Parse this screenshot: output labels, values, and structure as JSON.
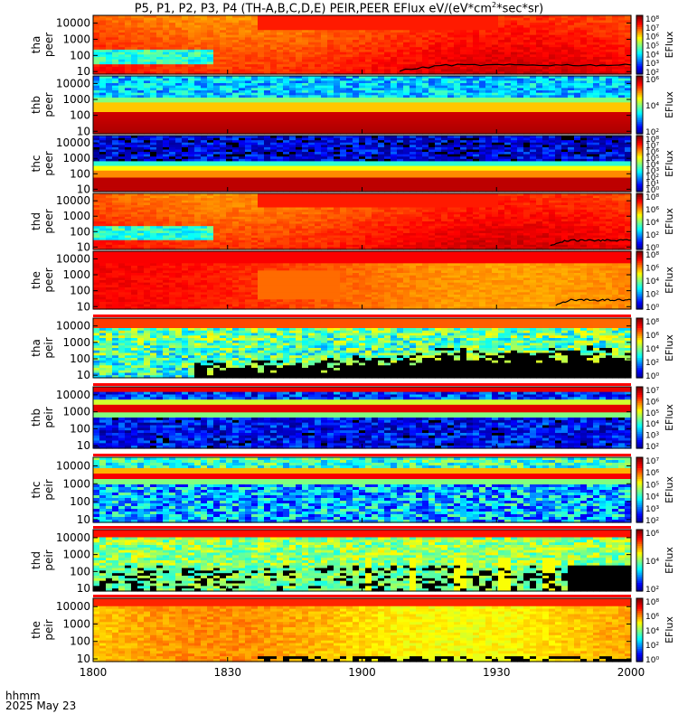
{
  "title_main": "P5, P1, P2, P3, P4 (TH-A,B,C,D,E) PEIR,PEER EFlux eV/(eV*cm",
  "title_sup": "2",
  "title_tail": "*sec*sr)",
  "footer": {
    "label1": "hhmm",
    "label2": "2025 May 23"
  },
  "colors": {
    "background": "#ffffff",
    "trace": "#000000"
  },
  "chart_data": [
    {
      "type": "heatmap",
      "ylabel": "tha peer",
      "zlabel": "EFlux",
      "xlabel": "",
      "x_ticks": [
        "1800",
        "1830",
        "1900",
        "1930",
        "2000"
      ],
      "y_ticks": [
        "10",
        "100",
        "1000",
        "10000"
      ],
      "y_scale": "log",
      "ylim": [
        7,
        30000
      ],
      "zticks": [
        "10²",
        "10³",
        "10⁴",
        "10⁵",
        "10⁶",
        "10⁷",
        "10⁸"
      ],
      "profile": "orange-saturated",
      "has_trace": true
    },
    {
      "type": "heatmap",
      "ylabel": "thb peer",
      "zlabel": "EFlux",
      "xlabel": "",
      "x_ticks": [
        "1800",
        "1830",
        "1900",
        "1930",
        "2000"
      ],
      "y_ticks": [
        "10",
        "100",
        "1000",
        "10000"
      ],
      "y_scale": "log",
      "ylim": [
        7,
        30000
      ],
      "zticks": [
        "10²",
        "10⁴",
        "10⁶"
      ],
      "profile": "banded-cyan",
      "has_trace": false
    },
    {
      "type": "heatmap",
      "ylabel": "thc peer",
      "zlabel": "EFlux",
      "xlabel": "",
      "x_ticks": [
        "1800",
        "1830",
        "1900",
        "1930",
        "2000"
      ],
      "y_ticks": [
        "10",
        "100",
        "1000",
        "10000"
      ],
      "y_scale": "log",
      "ylim": [
        7,
        30000
      ],
      "zticks": [
        "10⁰",
        "10¹",
        "10²",
        "10³",
        "10⁴",
        "10⁵",
        "10⁶",
        "10⁷",
        "10⁸"
      ],
      "profile": "banded-blue",
      "has_trace": false
    },
    {
      "type": "heatmap",
      "ylabel": "thd peer",
      "zlabel": "EFlux",
      "xlabel": "",
      "x_ticks": [
        "1800",
        "1830",
        "1900",
        "1930",
        "2000"
      ],
      "y_ticks": [
        "10",
        "100",
        "1000",
        "10000"
      ],
      "y_scale": "log",
      "ylim": [
        7,
        30000
      ],
      "zticks": [
        "10⁰",
        "10²",
        "10⁴",
        "10⁶",
        "10⁸"
      ],
      "profile": "orange-saturated",
      "has_trace": true
    },
    {
      "type": "heatmap",
      "ylabel": "the peer",
      "zlabel": "EFlux",
      "xlabel": "",
      "x_ticks": [
        "1800",
        "1830",
        "1900",
        "1930",
        "2000"
      ],
      "y_ticks": [
        "10",
        "100",
        "1000",
        "10000"
      ],
      "y_scale": "log",
      "ylim": [
        7,
        30000
      ],
      "zticks": [
        "10⁰",
        "10²",
        "10⁴",
        "10⁶",
        "10⁸"
      ],
      "profile": "orange-red",
      "has_trace": true
    },
    {
      "type": "heatmap",
      "ylabel": "tha peir",
      "zlabel": "EFlux",
      "xlabel": "",
      "x_ticks": [
        "1800",
        "1830",
        "1900",
        "1930",
        "2000"
      ],
      "y_ticks": [
        "10",
        "100",
        "1000",
        "10000"
      ],
      "y_scale": "log",
      "ylim": [
        7,
        30000
      ],
      "zticks": [
        "10⁰",
        "10²",
        "10⁴",
        "10⁶",
        "10⁸"
      ],
      "profile": "ion-black-low",
      "has_trace": false
    },
    {
      "type": "heatmap",
      "ylabel": "thb peir",
      "zlabel": "EFlux",
      "xlabel": "",
      "x_ticks": [
        "1800",
        "1830",
        "1900",
        "1930",
        "2000"
      ],
      "y_ticks": [
        "10",
        "100",
        "1000",
        "10000"
      ],
      "y_scale": "log",
      "ylim": [
        7,
        30000
      ],
      "zticks": [
        "10²",
        "10³",
        "10⁴",
        "10⁵",
        "10⁶",
        "10⁷"
      ],
      "profile": "ion-banded-blue",
      "has_trace": false
    },
    {
      "type": "heatmap",
      "ylabel": "thc peir",
      "zlabel": "EFlux",
      "xlabel": "",
      "x_ticks": [
        "1800",
        "1830",
        "1900",
        "1930",
        "2000"
      ],
      "y_ticks": [
        "10",
        "100",
        "1000",
        "10000"
      ],
      "y_scale": "log",
      "ylim": [
        7,
        30000
      ],
      "zticks": [
        "10²",
        "10³",
        "10⁴",
        "10⁵",
        "10⁶",
        "10⁷"
      ],
      "profile": "ion-banded-cyan",
      "has_trace": false
    },
    {
      "type": "heatmap",
      "ylabel": "thd peir",
      "zlabel": "EFlux",
      "xlabel": "",
      "x_ticks": [
        "1800",
        "1830",
        "1900",
        "1930",
        "2000"
      ],
      "y_ticks": [
        "10",
        "100",
        "1000",
        "10000"
      ],
      "y_scale": "log",
      "ylim": [
        7,
        30000
      ],
      "zticks": [
        "10²",
        "10⁴",
        "10⁶"
      ],
      "profile": "ion-green-black",
      "has_trace": false
    },
    {
      "type": "heatmap",
      "ylabel": "the peir",
      "zlabel": "EFlux",
      "xlabel": "",
      "x_ticks": [
        "1800",
        "1830",
        "1900",
        "1930",
        "2000"
      ],
      "y_ticks": [
        "10",
        "100",
        "1000",
        "10000"
      ],
      "y_scale": "log",
      "ylim": [
        7,
        30000
      ],
      "zticks": [
        "10⁰",
        "10²",
        "10⁴",
        "10⁶",
        "10⁸"
      ],
      "profile": "ion-yellow",
      "has_trace": false
    }
  ]
}
